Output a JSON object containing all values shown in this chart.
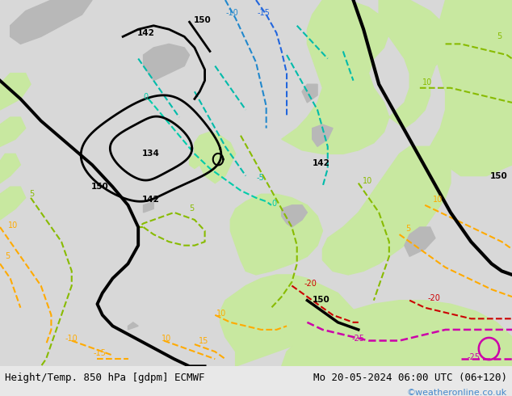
{
  "title_left": "Height/Temp. 850 hPa [gdpm] ECMWF",
  "title_right": "Mo 20-05-2024 06:00 UTC (06+120)",
  "credit": "©weatheronline.co.uk",
  "fig_width": 6.34,
  "fig_height": 4.9,
  "dpi": 100,
  "bottom_text_color": "#000000",
  "credit_color": "#4488cc",
  "font_size_bottom": 9,
  "font_size_credit": 8,
  "ocean_color": "#d8d8d8",
  "land_green": "#c8e8a0",
  "land_gray": "#b8b8b8",
  "bottom_bar_color": "#e8e8e8"
}
